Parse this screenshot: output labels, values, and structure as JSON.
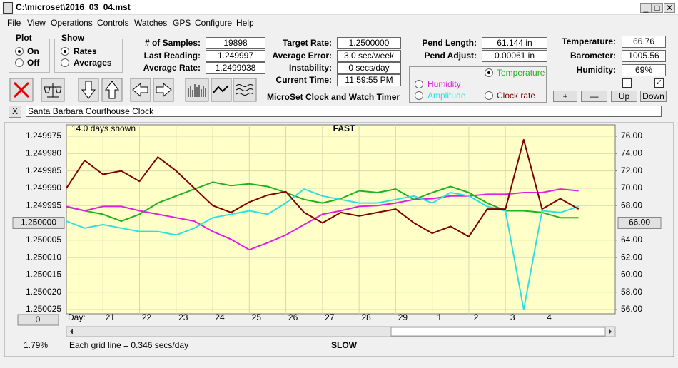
{
  "ui": {
    "title": "C:\\microset\\2016_03_04.mst",
    "menu": [
      "File",
      "View",
      "Operations",
      "Controls",
      "Watches",
      "GPS",
      "Configure",
      "Help"
    ],
    "plot": {
      "label": "Plot",
      "options": [
        "On",
        "Off"
      ]
    },
    "show": {
      "label": "Show",
      "options": [
        "Rates",
        "Averages"
      ]
    },
    "stats": [
      {
        "label": "# of Samples:",
        "value": "19898"
      },
      {
        "label": "Last Reading:",
        "value": "1.249997"
      },
      {
        "label": "Average Rate:",
        "value": "1.2499938"
      }
    ],
    "timing": [
      {
        "label": "Target Rate:",
        "value": "1.2500000"
      },
      {
        "label": "Average Error:",
        "value": "3.0 sec/week"
      },
      {
        "label": "Instability:",
        "value": "0 secs/day"
      },
      {
        "label": "Current Time:",
        "value": "11:59:55 PM"
      }
    ],
    "caption": "MicroSet Clock and Watch Timer",
    "pend": [
      {
        "label": "Pend Length:",
        "value": "61.144 in"
      },
      {
        "label": "Pend Adjust:",
        "value": "0.00061 in"
      }
    ],
    "environment": [
      {
        "label": "Temperature:",
        "value": "66.76"
      },
      {
        "label": "Barometer:",
        "value": "1005.56"
      },
      {
        "label": "Humidity:",
        "value": "69%"
      }
    ],
    "buttons": [
      "+",
      "—",
      "Up",
      "Down"
    ],
    "close_button": "X",
    "clock_name": "Santa Barbara Courthouse Clock",
    "days_shown": "14.0 days shown",
    "top_label": "FAST",
    "bottom_label": "SLOW",
    "grid_note": "Each grid line = 0.346 secs/day",
    "percent": "1.79%",
    "scroll_button": "0",
    "day_label": "Day:"
  },
  "chart_data": {
    "type": "line",
    "x": [
      0,
      0.5,
      1,
      1.5,
      2,
      2.5,
      3,
      3.5,
      4,
      4.5,
      5,
      5.5,
      6,
      6.5,
      7,
      7.5,
      8,
      8.5,
      9,
      9.5,
      10,
      10.5,
      11,
      11.5,
      12,
      12.5,
      13,
      13.5,
      14
    ],
    "xlim": [
      0,
      15
    ],
    "xticks": [
      {
        "value": 1,
        "label": "21"
      },
      {
        "value": 2,
        "label": "22"
      },
      {
        "value": 3,
        "label": "23"
      },
      {
        "value": 4,
        "label": "24"
      },
      {
        "value": 5,
        "label": "25"
      },
      {
        "value": 6,
        "label": "26"
      },
      {
        "value": 7,
        "label": "27"
      },
      {
        "value": 8,
        "label": "28"
      },
      {
        "value": 9,
        "label": "29"
      },
      {
        "value": 10,
        "label": "1"
      },
      {
        "value": 11,
        "label": "2"
      },
      {
        "value": 12,
        "label": "3"
      },
      {
        "value": 13,
        "label": "4"
      }
    ],
    "ylim": [
      1.250025,
      1.249975
    ],
    "yticks": [
      {
        "value": 1.249975,
        "label": "1.249975"
      },
      {
        "value": 1.24998,
        "label": "1.249980"
      },
      {
        "value": 1.249985,
        "label": "1.249985"
      },
      {
        "value": 1.24999,
        "label": "1.249990"
      },
      {
        "value": 1.249995,
        "label": "1.249995"
      },
      {
        "value": 1.25,
        "label": "1.250000"
      },
      {
        "value": 1.250005,
        "label": "1.250005"
      },
      {
        "value": 1.25001,
        "label": "1.250010"
      },
      {
        "value": 1.250015,
        "label": "1.250015"
      },
      {
        "value": 1.25002,
        "label": "1.250020"
      },
      {
        "value": 1.250025,
        "label": "1.250025"
      }
    ],
    "y2lim": [
      56,
      76
    ],
    "y2ticks": [
      {
        "value": 76,
        "label": "76.00"
      },
      {
        "value": 74,
        "label": "74.00"
      },
      {
        "value": 72,
        "label": "72.00"
      },
      {
        "value": 70,
        "label": "70.00"
      },
      {
        "value": 68,
        "label": "68.00"
      },
      {
        "value": 66,
        "label": "66.00"
      },
      {
        "value": 64,
        "label": "64.00"
      },
      {
        "value": 62,
        "label": "62.00"
      },
      {
        "value": 60,
        "label": "60.00"
      },
      {
        "value": 58,
        "label": "58.00"
      },
      {
        "value": 56,
        "label": "56.00"
      }
    ],
    "grid": true,
    "series": [
      {
        "name": "Temperature",
        "color": "#20b020",
        "axis": "y2",
        "values": [
          67.85,
          67.4,
          67.0,
          66.2,
          67.0,
          68.3,
          69.1,
          69.9,
          70.7,
          70.3,
          70.5,
          70.2,
          69.5,
          68.7,
          68.3,
          68.8,
          69.7,
          69.5,
          69.9,
          68.7,
          69.5,
          70.2,
          69.5,
          68.3,
          67.4,
          67.4,
          67.2,
          66.6,
          66.6
        ]
      },
      {
        "name": "Humidity",
        "color": "#e020e0",
        "axis": "y2",
        "values": [
          67.9,
          67.4,
          67.9,
          67.9,
          67.4,
          67.0,
          66.6,
          66.2,
          65.0,
          64.1,
          62.9,
          63.7,
          64.6,
          65.8,
          67.0,
          67.4,
          67.9,
          68.0,
          68.3,
          68.7,
          68.8,
          69.1,
          69.1,
          69.3,
          69.3,
          69.5,
          69.5,
          69.9,
          69.7
        ]
      },
      {
        "name": "Amplitude",
        "color": "#30e0e0",
        "axis": "y2",
        "values": [
          66.2,
          65.4,
          65.8,
          65.4,
          65.0,
          65.0,
          64.6,
          65.4,
          66.6,
          67.0,
          67.4,
          67.0,
          68.3,
          69.9,
          69.1,
          68.7,
          68.3,
          68.3,
          68.7,
          69.1,
          68.3,
          69.5,
          69.1,
          67.9,
          67.4,
          56.0,
          67.4,
          67.2,
          67.9
        ]
      },
      {
        "name": "Clock rate",
        "color": "#800000",
        "values": [
          1.24999,
          1.249982,
          1.249986,
          1.249985,
          1.249988,
          1.249981,
          1.249985,
          1.24999,
          1.249995,
          1.249997,
          1.249994,
          1.249992,
          1.249991,
          1.249997,
          1.25,
          1.249997,
          1.249998,
          1.249997,
          1.249996,
          1.25,
          1.250003,
          1.250001,
          1.250004,
          1.249996,
          1.249996,
          1.249976,
          1.249996,
          1.249993,
          1.249996
        ]
      }
    ]
  }
}
